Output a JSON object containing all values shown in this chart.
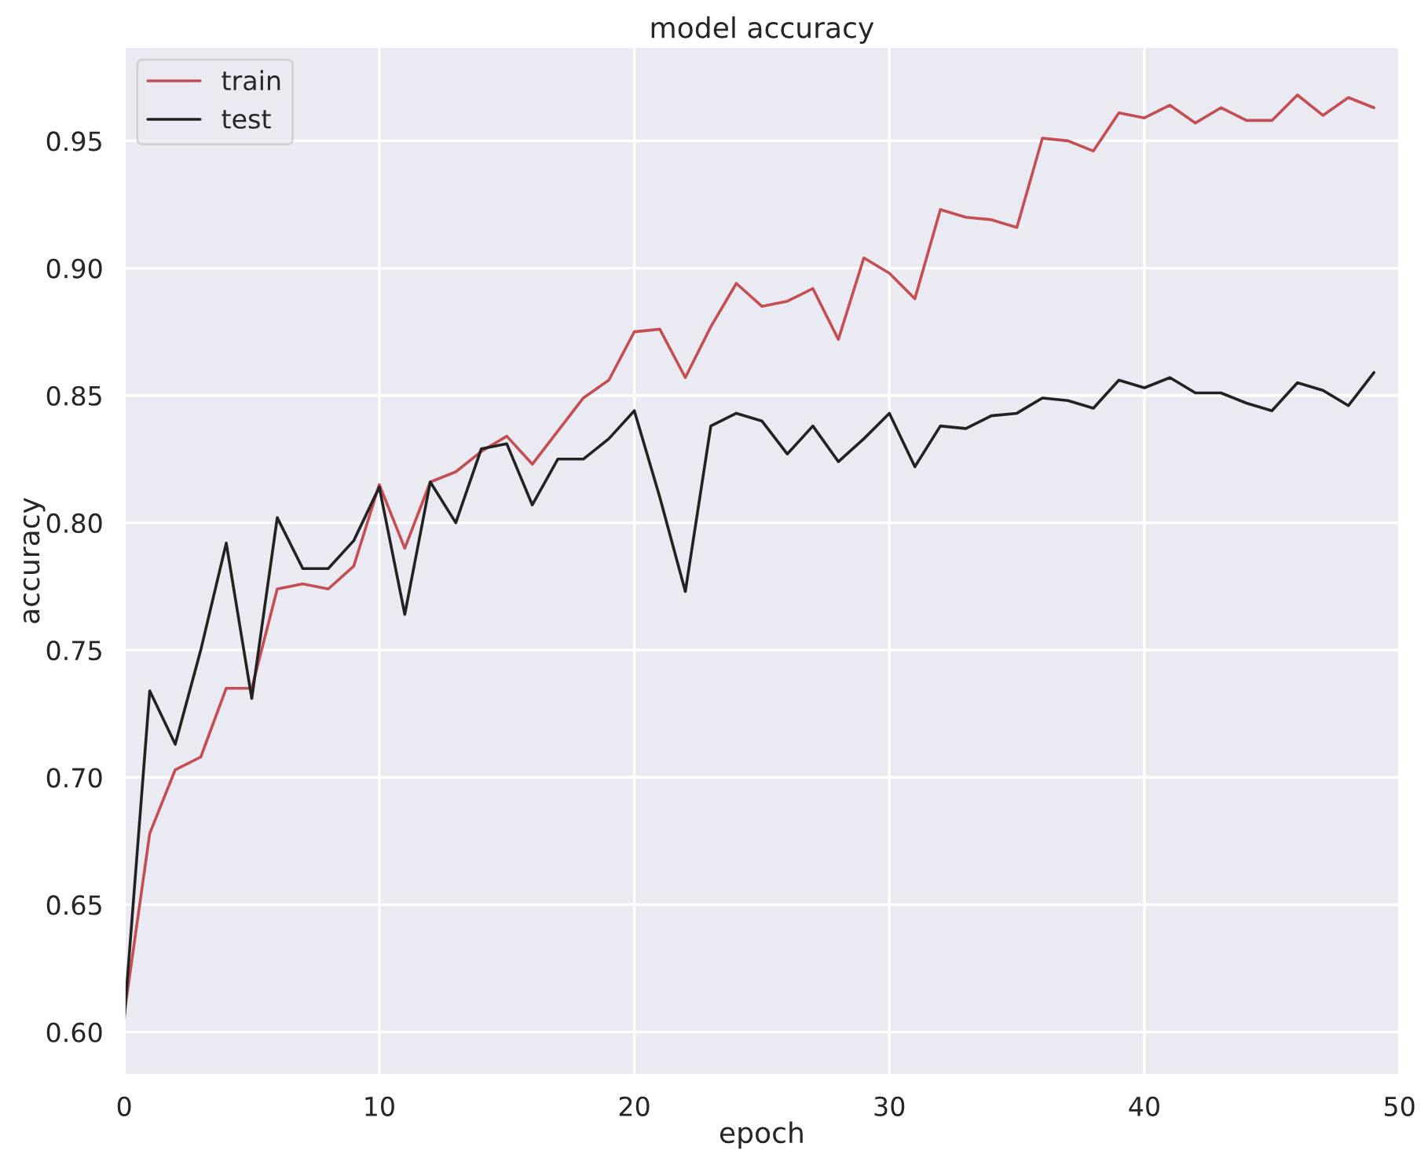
{
  "chart_data": {
    "type": "line",
    "title": "model accuracy",
    "xlabel": "epoch",
    "ylabel": "accuracy",
    "x": [
      0,
      1,
      2,
      3,
      4,
      5,
      6,
      7,
      8,
      9,
      10,
      11,
      12,
      13,
      14,
      15,
      16,
      17,
      18,
      19,
      20,
      21,
      22,
      23,
      24,
      25,
      26,
      27,
      28,
      29,
      30,
      31,
      32,
      33,
      34,
      35,
      36,
      37,
      38,
      39,
      40,
      41,
      42,
      43,
      44,
      45,
      46,
      47,
      48,
      49
    ],
    "series": [
      {
        "name": "train",
        "color": "#c44e52",
        "values": [
          0.607,
          0.678,
          0.703,
          0.708,
          0.735,
          0.735,
          0.774,
          0.776,
          0.774,
          0.783,
          0.815,
          0.79,
          0.816,
          0.82,
          0.828,
          0.834,
          0.823,
          0.836,
          0.849,
          0.856,
          0.875,
          0.876,
          0.857,
          0.877,
          0.894,
          0.885,
          0.887,
          0.892,
          0.872,
          0.904,
          0.898,
          0.888,
          0.923,
          0.92,
          0.919,
          0.916,
          0.951,
          0.95,
          0.946,
          0.961,
          0.959,
          0.964,
          0.957,
          0.963,
          0.958,
          0.958,
          0.968,
          0.96,
          0.967,
          0.963
        ]
      },
      {
        "name": "test",
        "color": "#222222",
        "values": [
          0.605,
          0.734,
          0.713,
          0.75,
          0.792,
          0.731,
          0.802,
          0.782,
          0.782,
          0.793,
          0.814,
          0.764,
          0.816,
          0.8,
          0.829,
          0.831,
          0.807,
          0.825,
          0.825,
          0.833,
          0.844,
          0.81,
          0.773,
          0.838,
          0.843,
          0.84,
          0.827,
          0.838,
          0.824,
          0.833,
          0.843,
          0.822,
          0.838,
          0.837,
          0.842,
          0.843,
          0.849,
          0.848,
          0.845,
          0.856,
          0.853,
          0.857,
          0.851,
          0.851,
          0.847,
          0.844,
          0.855,
          0.852,
          0.846,
          0.859
        ]
      }
    ],
    "xlim": [
      0,
      50
    ],
    "xticks": [
      0,
      10,
      20,
      30,
      40,
      50
    ],
    "ylim": [
      0.583,
      0.987
    ],
    "yticks": [
      {
        "value": 0.6,
        "label": "0.60"
      },
      {
        "value": 0.65,
        "label": "0.65"
      },
      {
        "value": 0.7,
        "label": "0.70"
      },
      {
        "value": 0.75,
        "label": "0.75"
      },
      {
        "value": 0.8,
        "label": "0.80"
      },
      {
        "value": 0.85,
        "label": "0.85"
      },
      {
        "value": 0.9,
        "label": "0.90"
      },
      {
        "value": 0.95,
        "label": "0.95"
      }
    ],
    "grid": true,
    "legend": "top left",
    "marker": "none",
    "line_style": "solid"
  }
}
